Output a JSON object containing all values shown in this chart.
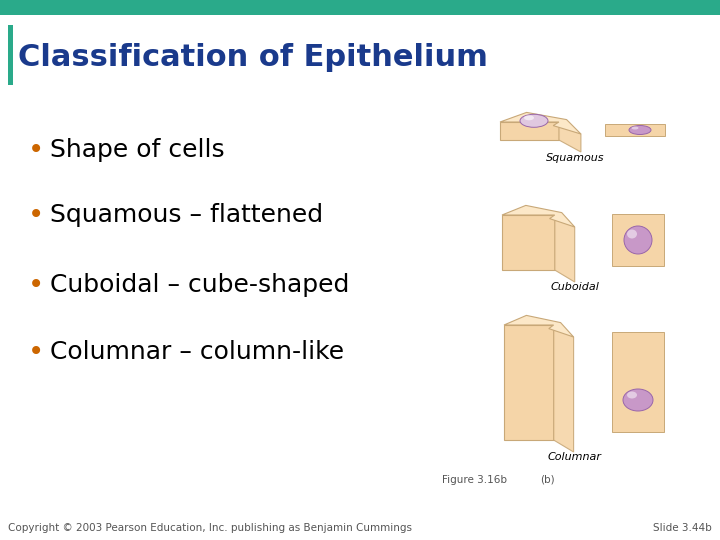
{
  "title": "Classification of Epithelium",
  "title_color": "#1a3a8c",
  "title_bar_color": "#2aaa8a",
  "background_color": "#ffffff",
  "bullet_points": [
    "Shape of cells",
    "Squamous – flattened",
    "Cuboidal – cube-shaped",
    "Columnar – column-like"
  ],
  "bullet_color": "#000000",
  "bullet_dot_color": "#cc6600",
  "bullet_fontsize": 18,
  "cell_labels": [
    "Squamous",
    "Cuboidal",
    "Columnar"
  ],
  "cell_color": "#f5d5a8",
  "cell_top_color": "#fce8c8",
  "cell_border_color": "#c8a878",
  "nucleus_color": "#c898c8",
  "nucleus_border": "#9966aa",
  "footer_left": "Copyright © 2003 Pearson Education, Inc. publishing as Benjamin Cummings",
  "footer_right": "Slide 3.44b",
  "footer_fontsize": 7.5,
  "figure_label": "Figure 3.16b",
  "figure_label_b": "(b)"
}
